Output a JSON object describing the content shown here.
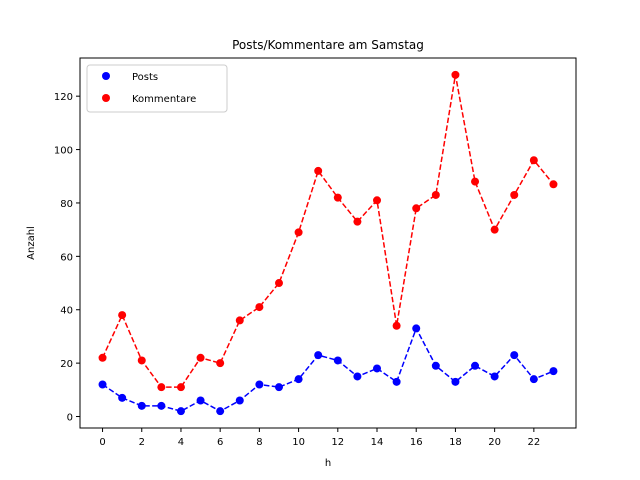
{
  "chart_data": {
    "type": "line",
    "title": "Posts/Kommentare am Samstag",
    "xlabel": "h",
    "ylabel": "Anzahl",
    "x": [
      0,
      1,
      2,
      3,
      4,
      5,
      6,
      7,
      8,
      9,
      10,
      11,
      12,
      13,
      14,
      15,
      16,
      17,
      18,
      19,
      20,
      21,
      22,
      23
    ],
    "xlim": [
      -1.15,
      24.15
    ],
    "ylim": [
      -4.3,
      134.3
    ],
    "xticks": [
      0,
      2,
      4,
      6,
      8,
      10,
      12,
      14,
      16,
      18,
      20,
      22
    ],
    "yticks": [
      0,
      20,
      40,
      60,
      80,
      100,
      120
    ],
    "legend_position": "top-left",
    "series": [
      {
        "name": "Posts",
        "color": "#0000ff",
        "style": "dashed line with circle markers",
        "values": [
          12,
          7,
          4,
          4,
          2,
          6,
          2,
          6,
          12,
          11,
          14,
          23,
          21,
          15,
          18,
          13,
          33,
          19,
          13,
          19,
          15,
          23,
          14,
          17
        ]
      },
      {
        "name": "Kommentare",
        "color": "#ff0000",
        "style": "dashed line with circle markers",
        "values": [
          22,
          38,
          21,
          11,
          11,
          22,
          20,
          36,
          41,
          50,
          69,
          92,
          82,
          73,
          81,
          34,
          78,
          83,
          128,
          88,
          70,
          83,
          96,
          87
        ]
      }
    ]
  }
}
